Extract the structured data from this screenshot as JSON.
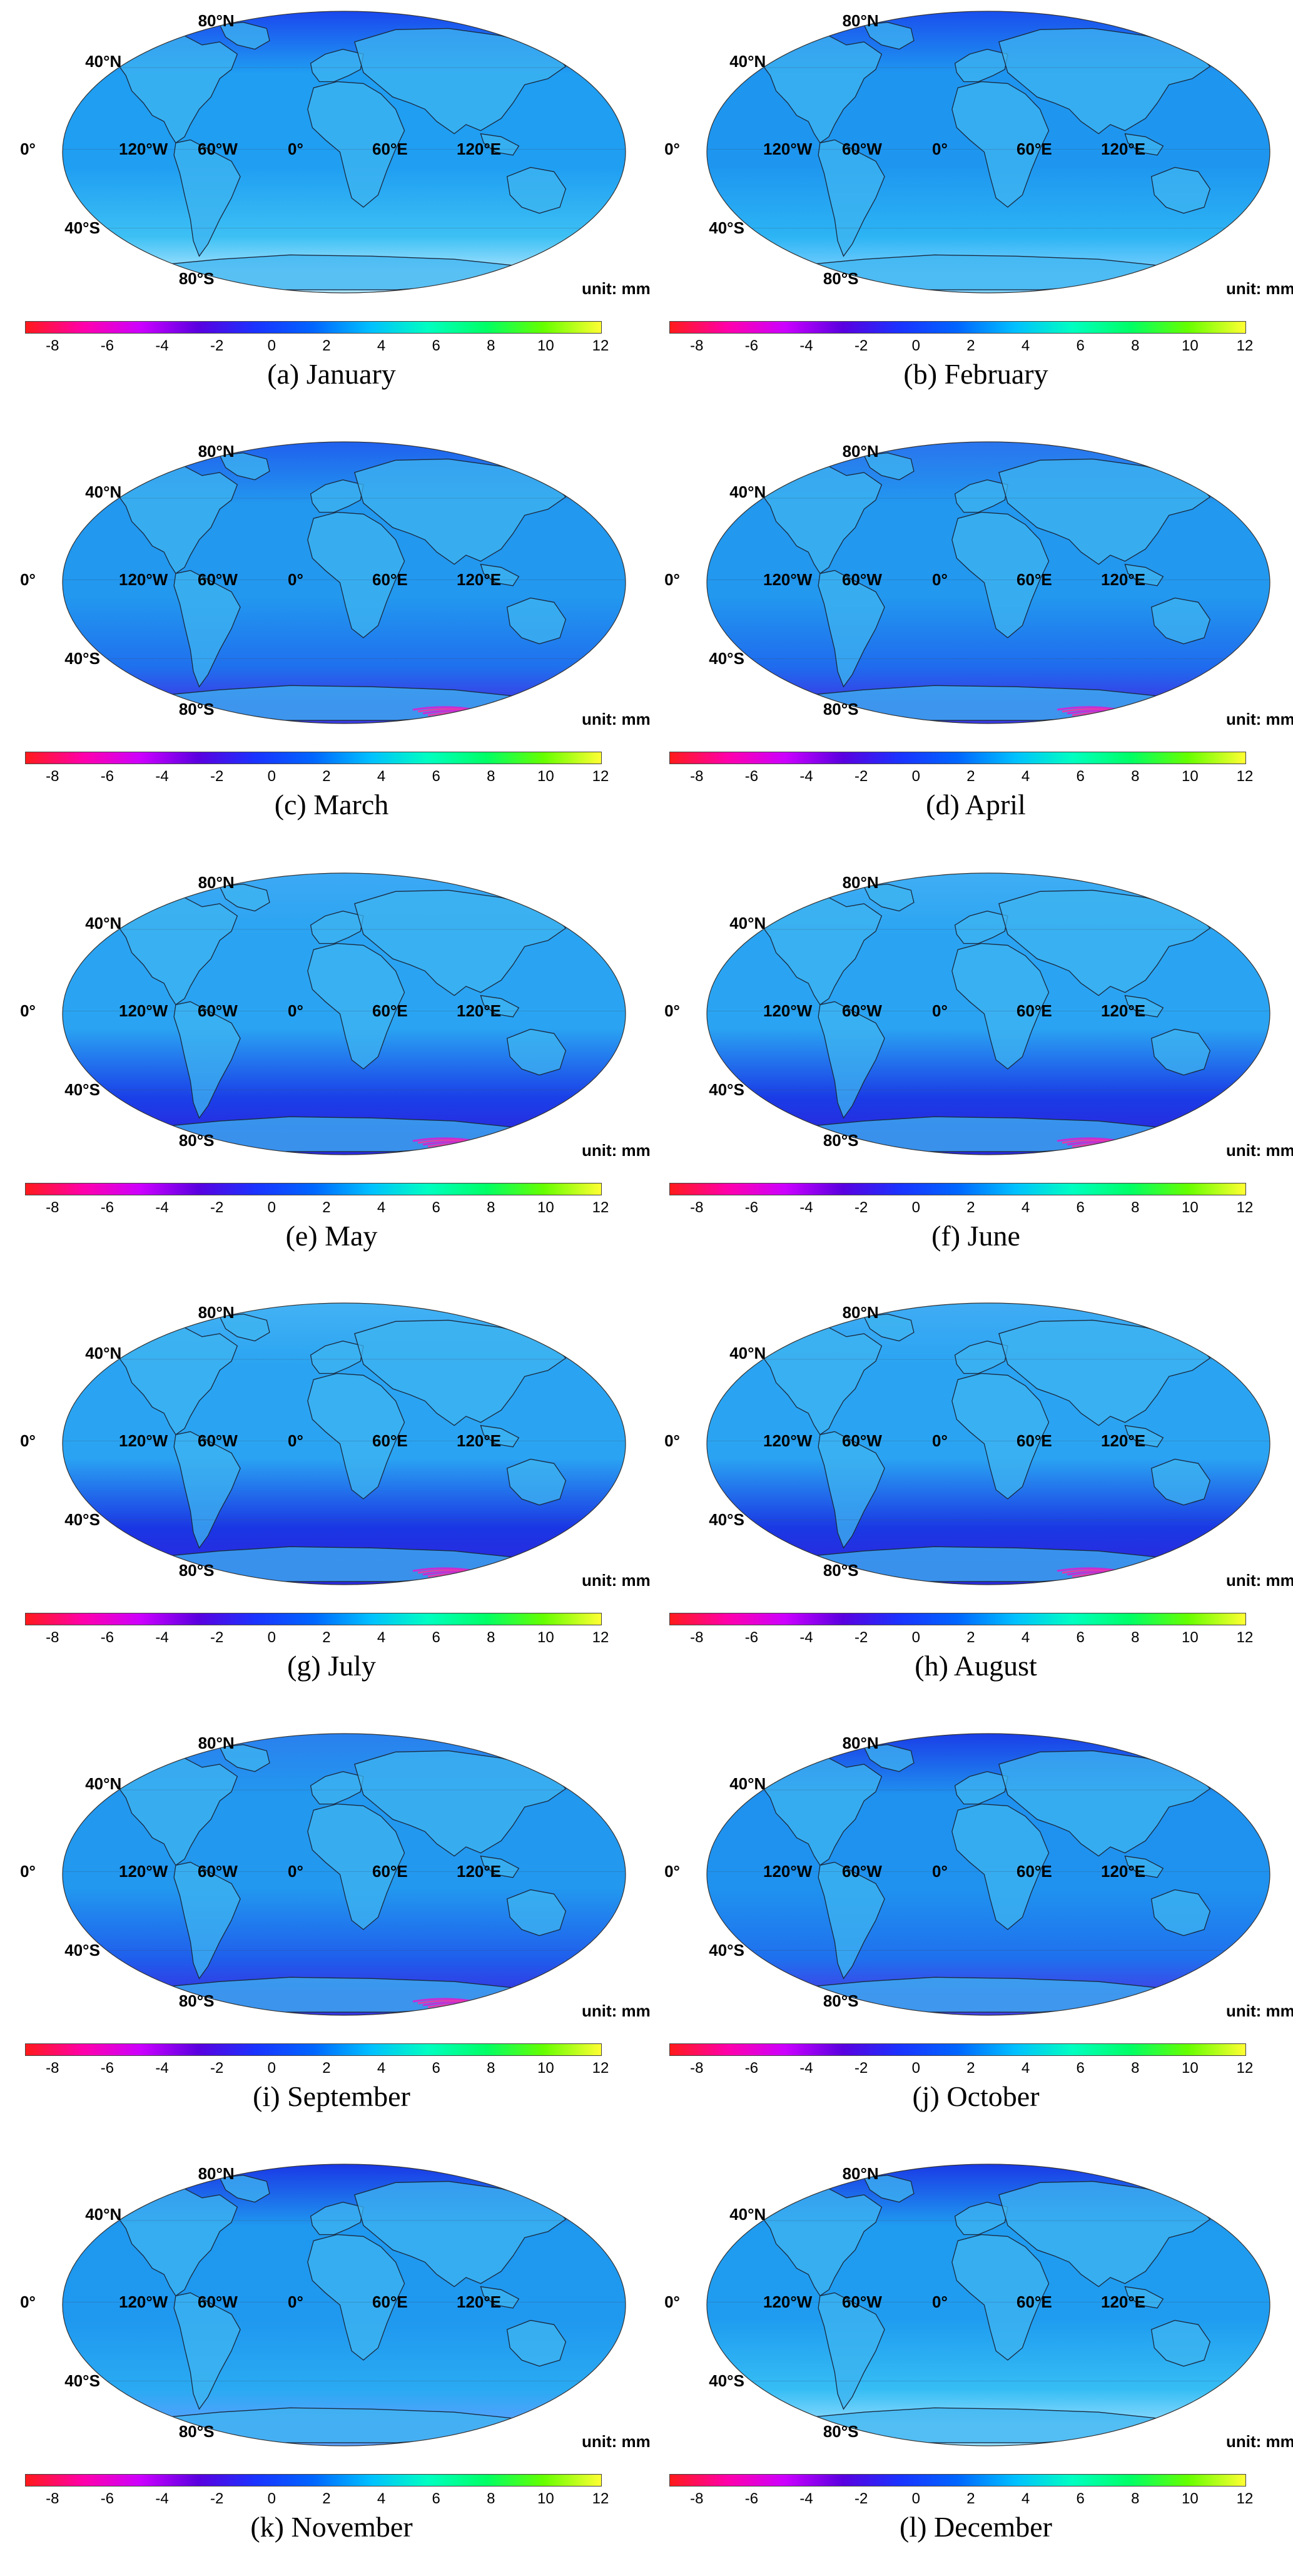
{
  "figure": {
    "colorbar": {
      "unit_label": "unit: mm",
      "ticks": [
        "-8",
        "-6",
        "-4",
        "-2",
        "0",
        "2",
        "4",
        "6",
        "8",
        "10",
        "12"
      ],
      "range": [
        -9,
        12
      ],
      "colors": [
        "#ff1a1a",
        "#ff00aa",
        "#cc00ff",
        "#5a00e0",
        "#1a33ff",
        "#0066ff",
        "#00c0ff",
        "#00ffc0",
        "#00ff66",
        "#66ff00",
        "#ffff33"
      ]
    },
    "lat_labels": [
      "80°N",
      "40°N",
      "0°",
      "40°S",
      "80°S"
    ],
    "lon_labels": [
      "120°W",
      "60°W",
      "0°",
      "60°E",
      "120°E"
    ],
    "panels": [
      {
        "caption": "(a) January",
        "ocean": "#1f9ef2",
        "north": "#1a47ee",
        "south": "#3cc0f4",
        "antarctic": "#a8e3ff",
        "band": false
      },
      {
        "caption": "(b) February",
        "ocean": "#1e96f0",
        "north": "#1a4fee",
        "south": "#2cb4f4",
        "antarctic": "#7ad0ff",
        "band": false
      },
      {
        "caption": "(c) March",
        "ocean": "#2298ef",
        "north": "#2060ee",
        "south": "#1f70ee",
        "antarctic": "#3b3be6",
        "band": true
      },
      {
        "caption": "(d) April",
        "ocean": "#2298ef",
        "north": "#2a74ee",
        "south": "#1f6bee",
        "antarctic": "#3a3ae6",
        "band": true
      },
      {
        "caption": "(e) May",
        "ocean": "#2aa4f2",
        "north": "#3da9f4",
        "south": "#1a3fe8",
        "antarctic": "#2a2ae0",
        "band": true
      },
      {
        "caption": "(f) June",
        "ocean": "#2aa4f2",
        "north": "#40aef4",
        "south": "#1a3be6",
        "antarctic": "#2a2ae0",
        "band": true
      },
      {
        "caption": "(g) July",
        "ocean": "#2aa4f2",
        "north": "#44b2f4",
        "south": "#1a36e4",
        "antarctic": "#2a2ae0",
        "band": true
      },
      {
        "caption": "(h) August",
        "ocean": "#2aa4f2",
        "north": "#40acf4",
        "south": "#1a38e4",
        "antarctic": "#2a2ae0",
        "band": true
      },
      {
        "caption": "(i) September",
        "ocean": "#2298ef",
        "north": "#2a80ee",
        "south": "#1f5eec",
        "antarctic": "#3535e4",
        "band": true
      },
      {
        "caption": "(j) October",
        "ocean": "#1f92ef",
        "north": "#1a3ee8",
        "south": "#1f70ee",
        "antarctic": "#4040e8",
        "band": false
      },
      {
        "caption": "(k) November",
        "ocean": "#1f98ef",
        "north": "#1a38e6",
        "south": "#2aaaf2",
        "antarctic": "#5aa0ff",
        "band": false
      },
      {
        "caption": "(l) December",
        "ocean": "#1f9cf0",
        "north": "#1a3ae6",
        "south": "#36bdf4",
        "antarctic": "#90dcff",
        "band": false
      }
    ]
  }
}
